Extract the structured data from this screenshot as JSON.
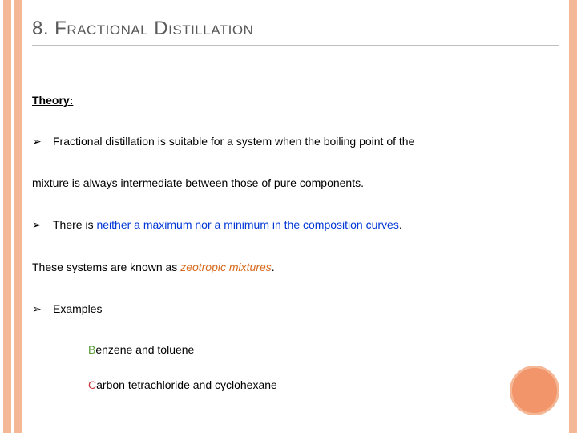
{
  "colors": {
    "stripe": "#f4b897",
    "circle_fill": "#f3956a",
    "circle_border": "#f4b897",
    "title_text": "#5a5a5a",
    "rule": "#bfbfbf",
    "blue_highlight": "#0036d6",
    "orange_italic": "#d86a1e",
    "green_letter": "#5a9c3a",
    "red_letter": "#c93a3a",
    "body_text": "#000000"
  },
  "title": "8. Fractional Distillation",
  "theory_label": "Theory:",
  "bullet_glyph": "➢",
  "bullet1_text": "Fractional distillation is suitable for a system when the boiling point of the",
  "bullet1_cont": "mixture is always intermediate between those of pure components.",
  "bullet2_prefix": " There is ",
  "bullet2_highlight": "neither a maximum nor a minimum in the composition curves",
  "bullet2_period": ".",
  "bullet2_cont_prefix": "These systems are known as ",
  "bullet2_cont_em": "zeotropic mixtures",
  "bullet2_cont_period": ".",
  "bullet3_text": "Examples",
  "example1_first": "B",
  "example1_rest": "enzene and toluene",
  "example2_first": "C",
  "example2_rest": "arbon tetrachloride and cyclohexane"
}
